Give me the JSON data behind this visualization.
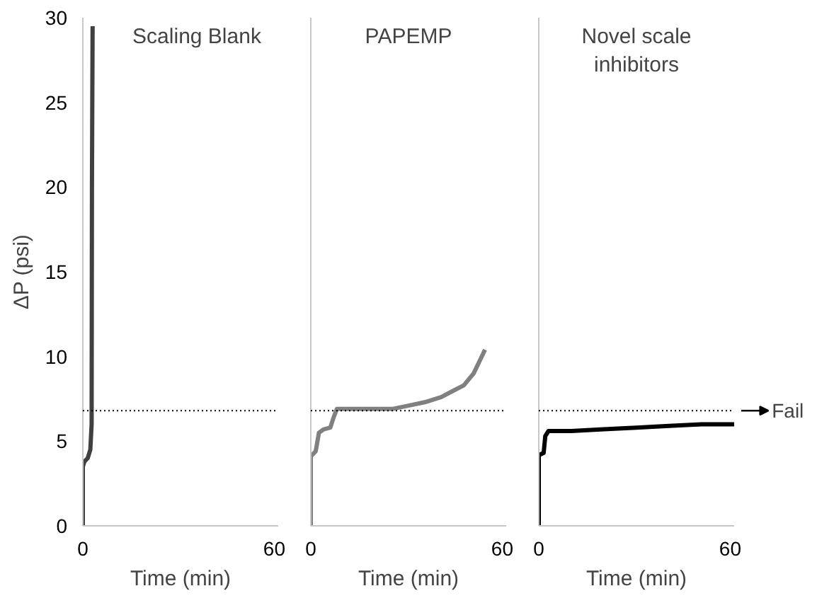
{
  "chart_data": [
    {
      "type": "line",
      "title": "Scaling Blank",
      "xlabel": "Time (min)",
      "ylabel": "ΔP (psi)",
      "xlim": [
        0,
        60
      ],
      "xticks": [
        0,
        60
      ],
      "ylim": [
        0,
        30
      ],
      "yticks": [
        0,
        5,
        10,
        15,
        20,
        25,
        30
      ],
      "grid": false,
      "series": [
        {
          "color": "#404040",
          "x": [
            0,
            0,
            0.5,
            1.5,
            2.3,
            2.7,
            2.8,
            3.0
          ],
          "values": [
            0,
            3.5,
            3.8,
            4.0,
            4.5,
            6,
            20,
            29.5
          ]
        }
      ],
      "ref_lines": [
        {
          "axis": "y",
          "value": 6.8,
          "line_style": "dotted",
          "color": "#000000"
        }
      ]
    },
    {
      "type": "line",
      "title": "PAPEMP",
      "xlabel": "Time (min)",
      "xlim": [
        0,
        60
      ],
      "xticks": [
        0,
        60
      ],
      "ylim": [
        0,
        30
      ],
      "tick_labels": "x",
      "grid": false,
      "series": [
        {
          "color": "#808080",
          "x": [
            0,
            0,
            0.5,
            1.5,
            2.5,
            4,
            6,
            7,
            8,
            10,
            15,
            20,
            25,
            30,
            35,
            40,
            44,
            47,
            50,
            52,
            53.5
          ],
          "values": [
            0,
            4.1,
            4.2,
            4.4,
            5.5,
            5.7,
            5.8,
            6.4,
            6.9,
            6.9,
            6.9,
            6.9,
            6.9,
            7.1,
            7.3,
            7.6,
            8.0,
            8.3,
            9.0,
            9.8,
            10.4
          ]
        }
      ],
      "ref_lines": [
        {
          "axis": "y",
          "value": 6.8,
          "line_style": "dotted",
          "color": "#000000"
        }
      ]
    },
    {
      "type": "line",
      "title": "Novel scale inhibitors",
      "xlabel": "Time (min)",
      "xlim": [
        0,
        60
      ],
      "xticks": [
        0,
        60
      ],
      "ylim": [
        0,
        30
      ],
      "tick_labels": "x",
      "grid": false,
      "series": [
        {
          "color": "#000000",
          "x": [
            0,
            0,
            0.3,
            1.5,
            2,
            3,
            5,
            10,
            20,
            30,
            40,
            50,
            60
          ],
          "values": [
            0,
            4.2,
            4.2,
            4.3,
            5.3,
            5.6,
            5.6,
            5.6,
            5.7,
            5.8,
            5.9,
            6.0,
            6.0
          ]
        }
      ],
      "ref_lines": [
        {
          "axis": "y",
          "value": 6.8,
          "line_style": "dotted",
          "color": "#000000",
          "label": "Fail"
        }
      ]
    }
  ]
}
